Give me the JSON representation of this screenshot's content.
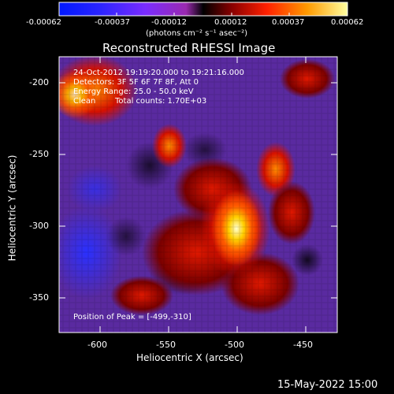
{
  "colorbar": {
    "tick_labels": [
      "-0.00062",
      "-0.00037",
      "-0.00012",
      "0.00012",
      "0.00037",
      "0.00062"
    ],
    "units_label": "(photons cm⁻² s⁻¹ asec⁻²)"
  },
  "plot": {
    "title": "Reconstructed RHESSI Image",
    "xlabel": "Heliocentric X (arcsec)",
    "ylabel": "Heliocentric Y (arcsec)",
    "x_ticks": [
      "-600",
      "-550",
      "-500",
      "-450"
    ],
    "y_ticks": [
      "-200",
      "-250",
      "-300",
      "-350"
    ],
    "annotations": {
      "time_range": "24-Oct-2012 19:19:20.000 to 19:21:16.000",
      "detectors": "Detectors: 3F 5F 6F 7F 8F, Att 0",
      "energy": "Energy Range: 25.0 - 50.0 keV",
      "clean": "Clean",
      "total_counts": "Total counts: 1.70E+03",
      "peak": "Position of Peak = [-499,-310]"
    }
  },
  "footer": {
    "date": "15-May-2022 15:00"
  }
}
